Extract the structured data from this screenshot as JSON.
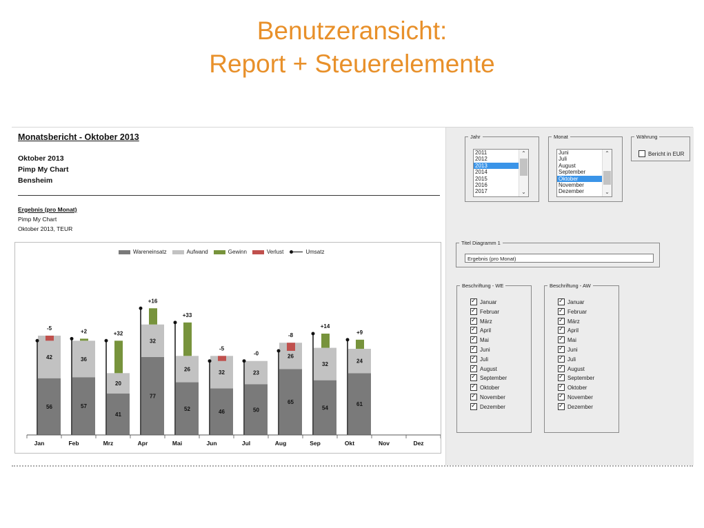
{
  "slide": {
    "title_line1": "Benutzeransicht:",
    "title_line2": "Report + Steuerelemente"
  },
  "report": {
    "title": "Monatsbericht - Oktober 2013",
    "lines": [
      "Oktober 2013",
      "Pimp My Chart",
      "Bensheim"
    ],
    "section_title": "Ergebnis (pro Monat)",
    "section_sub1": "Pimp My Chart",
    "section_sub2": "Oktober 2013, TEUR"
  },
  "chart_data": {
    "type": "bar",
    "categories": [
      "Jan",
      "Feb",
      "Mrz",
      "Apr",
      "Mai",
      "Jun",
      "Jul",
      "Aug",
      "Sep",
      "Okt",
      "Nov",
      "Dez"
    ],
    "series": [
      {
        "name": "Wareneinsatz",
        "color": "#7a7a7a",
        "values": [
          56,
          57,
          41,
          77,
          52,
          46,
          50,
          65,
          54,
          61,
          null,
          null
        ]
      },
      {
        "name": "Aufwand",
        "color": "#c2c2c2",
        "values": [
          42,
          36,
          20,
          32,
          26,
          32,
          23,
          26,
          32,
          24,
          null,
          null
        ]
      },
      {
        "name": "Gewinn",
        "color": "#77933c",
        "values": [
          0,
          2,
          32,
          16,
          33,
          0,
          0,
          0,
          14,
          9,
          null,
          null
        ]
      },
      {
        "name": "Verlust",
        "color": "#c0504d",
        "values": [
          5,
          0,
          0,
          0,
          0,
          5,
          0,
          8,
          0,
          0,
          null,
          null
        ]
      },
      {
        "name": "Umsatz",
        "color": "#111111",
        "values": [
          93,
          95,
          93,
          125,
          111,
          73,
          73,
          83,
          100,
          94,
          null,
          null
        ]
      }
    ],
    "result_labels": [
      "-5",
      "+2",
      "+32",
      "+16",
      "+33",
      "-5",
      "-0",
      "-8",
      "+14",
      "+9",
      "",
      ""
    ],
    "ylim": [
      0,
      135
    ],
    "legend_position": "top-center"
  },
  "controls": {
    "jahr": {
      "label": "Jahr",
      "options": [
        "2011",
        "2012",
        "2013",
        "2014",
        "2015",
        "2016",
        "2017"
      ],
      "selected": "2013"
    },
    "monat": {
      "label": "Monat",
      "options": [
        "Juni",
        "Juli",
        "August",
        "September",
        "Oktober",
        "November",
        "Dezember"
      ],
      "selected": "Oktober"
    },
    "waehrung": {
      "label": "Währung",
      "checkbox_label": "Bericht in EUR",
      "checked": false
    },
    "titel": {
      "label": "Titel Diagramm 1",
      "value": "Ergebnis (pro Monat)"
    },
    "we": {
      "label": "Beschriftung - WE",
      "items": [
        "Januar",
        "Februar",
        "März",
        "April",
        "Mai",
        "Juni",
        "Juli",
        "August",
        "September",
        "Oktober",
        "November",
        "Dezember"
      ]
    },
    "aw": {
      "label": "Beschriftung - AW",
      "items": [
        "Januar",
        "Februar",
        "März",
        "April",
        "Mai",
        "Juni",
        "Juli",
        "August",
        "September",
        "Oktober",
        "November",
        "Dezember"
      ]
    }
  }
}
